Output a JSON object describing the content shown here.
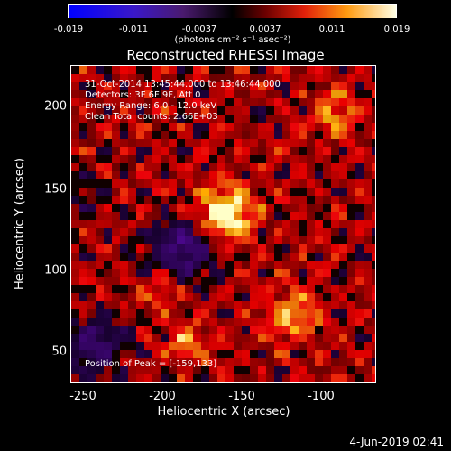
{
  "colorbar": {
    "ticks": [
      "-0.019",
      "-0.011",
      "-0.0037",
      "0.0037",
      "0.011",
      "0.019"
    ],
    "units": "(photons cm⁻² s⁻¹ asec⁻²)"
  },
  "title": "Reconstructed RHESSI Image",
  "info": {
    "time": "31-Oct-2014 13:45:44.000 to 13:46:44.000",
    "detectors": "Detectors: 3F 6F 9F, Att 0",
    "energy": "Energy Range: 6.0 - 12.0 keV",
    "clean": "Clean    Total counts: 2.66E+03",
    "peak": "Position of Peak = [-159,133]"
  },
  "axes": {
    "xlabel": "Heliocentric X (arcsec)",
    "ylabel": "Heliocentric Y (arcsec)",
    "xticks": [
      "-250",
      "-200",
      "-150",
      "-100"
    ],
    "yticks": [
      "200",
      "150",
      "100",
      "50"
    ]
  },
  "datestamp": "4-Jun-2019 02:41"
}
